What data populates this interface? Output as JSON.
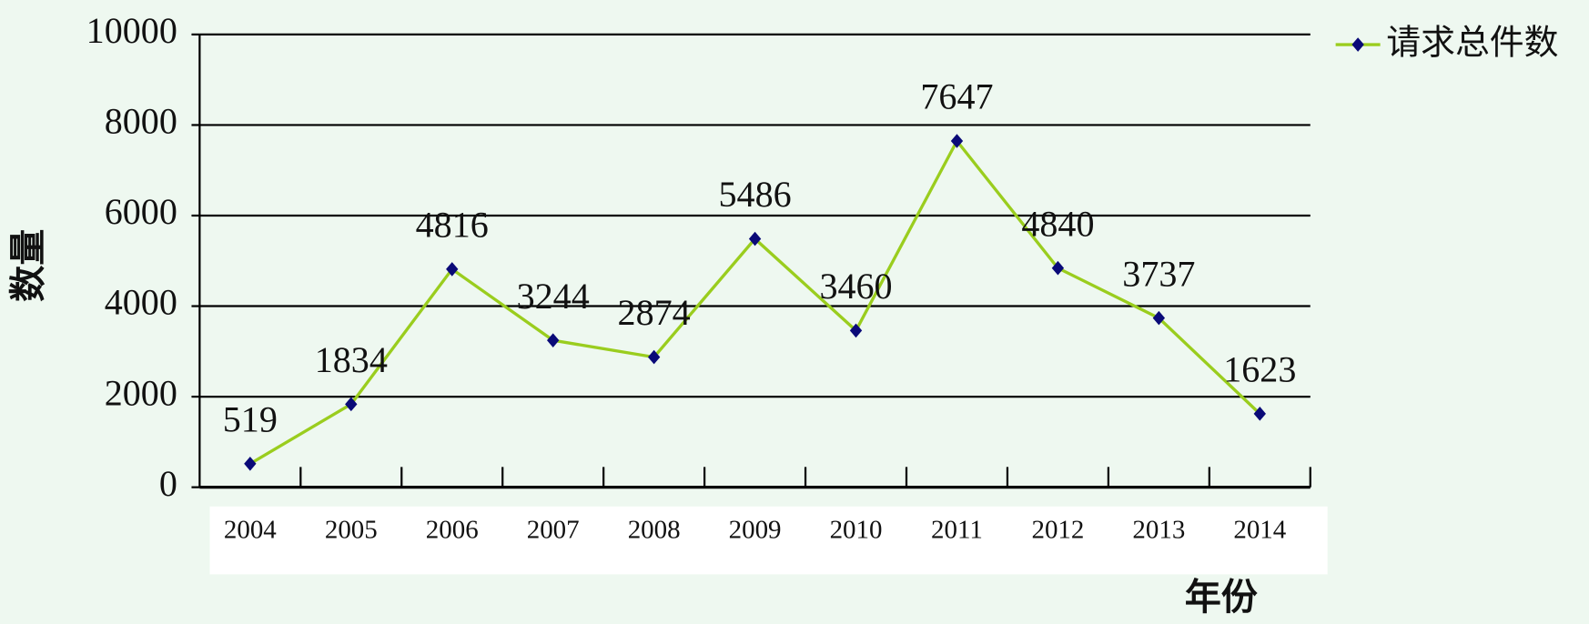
{
  "chart_data": {
    "type": "line",
    "x_label": "年份",
    "y_label": "数量",
    "categories": [
      "2004",
      "2005",
      "2006",
      "2007",
      "2008",
      "2009",
      "2010",
      "2011",
      "2012",
      "2013",
      "2014"
    ],
    "series": [
      {
        "name": "请求总件数",
        "color": "#9acd1e",
        "marker_color": "#0a0a78",
        "values": [
          519,
          1834,
          4816,
          3244,
          2874,
          5486,
          3460,
          7647,
          4840,
          3737,
          1623
        ]
      }
    ],
    "ylim": [
      0,
      10000
    ],
    "yticks": [
      0,
      2000,
      4000,
      6000,
      8000,
      10000
    ],
    "grid": true,
    "legend": "top-right"
  }
}
